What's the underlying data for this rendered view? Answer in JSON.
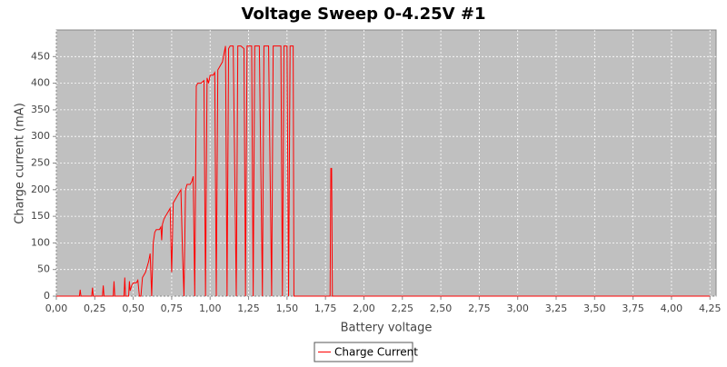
{
  "chart_data": {
    "type": "line",
    "title": "Voltage Sweep 0-4.25V #1",
    "x_label": "Battery voltage",
    "y_label": "Charge current (mA)",
    "grid": true,
    "legend": "bottom",
    "xlim": [
      0,
      4.29
    ],
    "ylim": [
      0,
      500
    ],
    "xticks": [
      {
        "value": 0,
        "label": "0,00"
      },
      {
        "value": 0.25,
        "label": "0,25"
      },
      {
        "value": 0.5,
        "label": "0,50"
      },
      {
        "value": 0.75,
        "label": "0,75"
      },
      {
        "value": 1,
        "label": "1,00"
      },
      {
        "value": 1.25,
        "label": "1,25"
      },
      {
        "value": 1.5,
        "label": "1,50"
      },
      {
        "value": 1.75,
        "label": "1,75"
      },
      {
        "value": 2,
        "label": "2,00"
      },
      {
        "value": 2.25,
        "label": "2,25"
      },
      {
        "value": 2.5,
        "label": "2,50"
      },
      {
        "value": 2.75,
        "label": "2,75"
      },
      {
        "value": 3,
        "label": "3,00"
      },
      {
        "value": 3.25,
        "label": "3,25"
      },
      {
        "value": 3.5,
        "label": "3,50"
      },
      {
        "value": 3.75,
        "label": "3,75"
      },
      {
        "value": 4,
        "label": "4,00"
      },
      {
        "value": 4.25,
        "label": "4,25"
      }
    ],
    "yticks": [
      0,
      50,
      100,
      150,
      200,
      250,
      300,
      350,
      400,
      450
    ],
    "x": [
      0,
      0.15,
      0.155,
      0.16,
      0.23,
      0.235,
      0.24,
      0.3,
      0.305,
      0.31,
      0.37,
      0.375,
      0.38,
      0.44,
      0.445,
      0.45,
      0.47,
      0.475,
      0.48,
      0.49,
      0.5,
      0.52,
      0.53,
      0.54,
      0.55,
      0.56,
      0.58,
      0.6,
      0.61,
      0.62,
      0.63,
      0.64,
      0.65,
      0.67,
      0.68,
      0.685,
      0.69,
      0.7,
      0.71,
      0.72,
      0.73,
      0.74,
      0.75,
      0.76,
      0.78,
      0.8,
      0.81,
      0.82,
      0.83,
      0.84,
      0.85,
      0.87,
      0.88,
      0.89,
      0.9,
      0.91,
      0.92,
      0.94,
      0.96,
      0.97,
      0.98,
      0.99,
      1,
      1.02,
      1.03,
      1.04,
      1.05,
      1.07,
      1.08,
      1.09,
      1.1,
      1.11,
      1.12,
      1.13,
      1.15,
      1.17,
      1.18,
      1.2,
      1.22,
      1.23,
      1.24,
      1.27,
      1.28,
      1.29,
      1.32,
      1.34,
      1.35,
      1.38,
      1.4,
      1.41,
      1.46,
      1.47,
      1.48,
      1.5,
      1.51,
      1.52,
      1.54,
      1.545,
      1.78,
      1.785,
      1.79,
      1.795,
      4.25
    ],
    "series": [
      {
        "name": "Charge Current",
        "color": "#ff0000",
        "values": [
          0,
          0,
          12,
          0,
          0,
          16,
          0,
          0,
          20,
          0,
          0,
          28,
          0,
          0,
          35,
          0,
          0,
          28,
          10,
          20,
          25,
          25,
          30,
          0,
          0,
          35,
          45,
          65,
          80,
          0,
          100,
          120,
          125,
          125,
          130,
          105,
          135,
          145,
          150,
          155,
          160,
          165,
          45,
          175,
          185,
          195,
          200,
          85,
          0,
          200,
          210,
          210,
          215,
          225,
          0,
          395,
          400,
          400,
          405,
          0,
          410,
          400,
          415,
          415,
          420,
          0,
          425,
          435,
          440,
          455,
          470,
          0,
          465,
          470,
          470,
          0,
          470,
          470,
          465,
          0,
          470,
          470,
          0,
          470,
          470,
          0,
          470,
          470,
          0,
          470,
          470,
          0,
          470,
          470,
          0,
          470,
          470,
          0,
          0,
          240,
          240,
          0,
          0
        ]
      }
    ]
  }
}
